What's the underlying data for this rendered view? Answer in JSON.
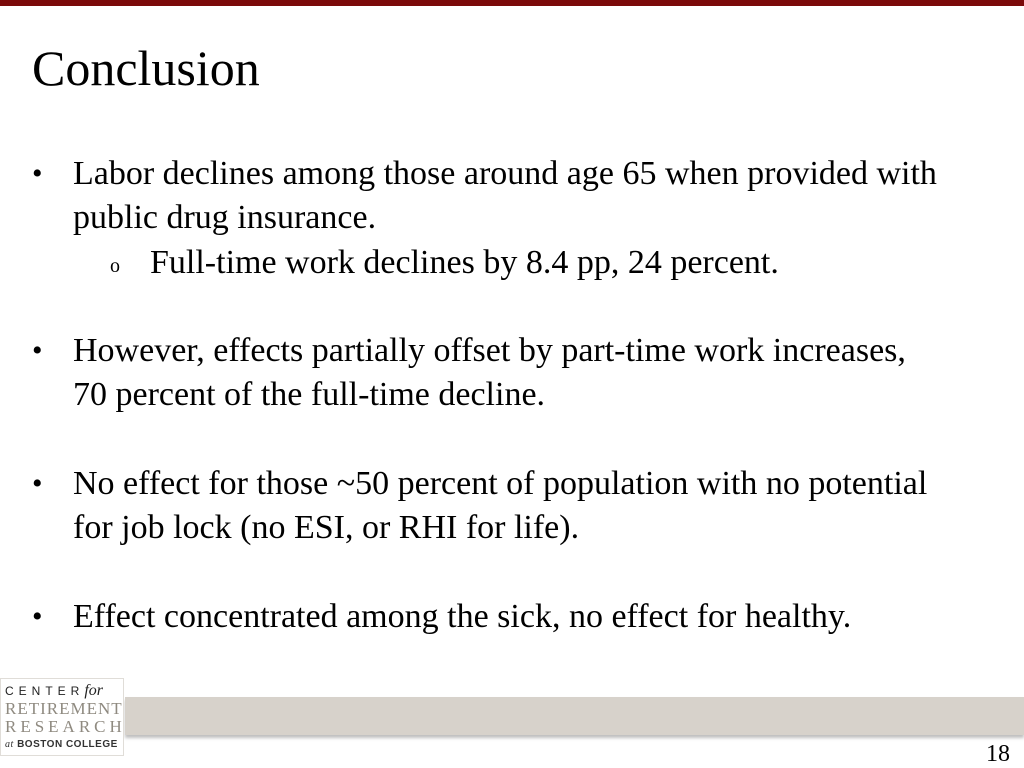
{
  "slide": {
    "title": "Conclusion",
    "bullets": [
      {
        "lines": [
          "Labor declines among those around age 65 when provided with",
          "public drug insurance."
        ],
        "sub": [
          "Full-time work declines by 8.4 pp, 24 percent."
        ]
      },
      {
        "lines": [
          "However, effects partially offset by part-time work increases,",
          "70 percent of the full-time decline."
        ]
      },
      {
        "lines": [
          "No effect for those ~50 percent of population with no potential",
          "for job lock (no ESI, or RHI for life)."
        ]
      },
      {
        "lines": [
          "Effect concentrated among the sick, no effect for healthy."
        ]
      }
    ],
    "bullet_glyph": "•",
    "sub_bullet_glyph": "o",
    "page_number": "18"
  },
  "logo": {
    "center": "CENTER",
    "for": "for",
    "retirement": "RETIREMENT",
    "research": "RESEARCH",
    "at": "at",
    "college": "BOSTON COLLEGE"
  },
  "colors": {
    "accent_bar": "#7b0a0a",
    "footer_band": "#d7d2cb"
  }
}
